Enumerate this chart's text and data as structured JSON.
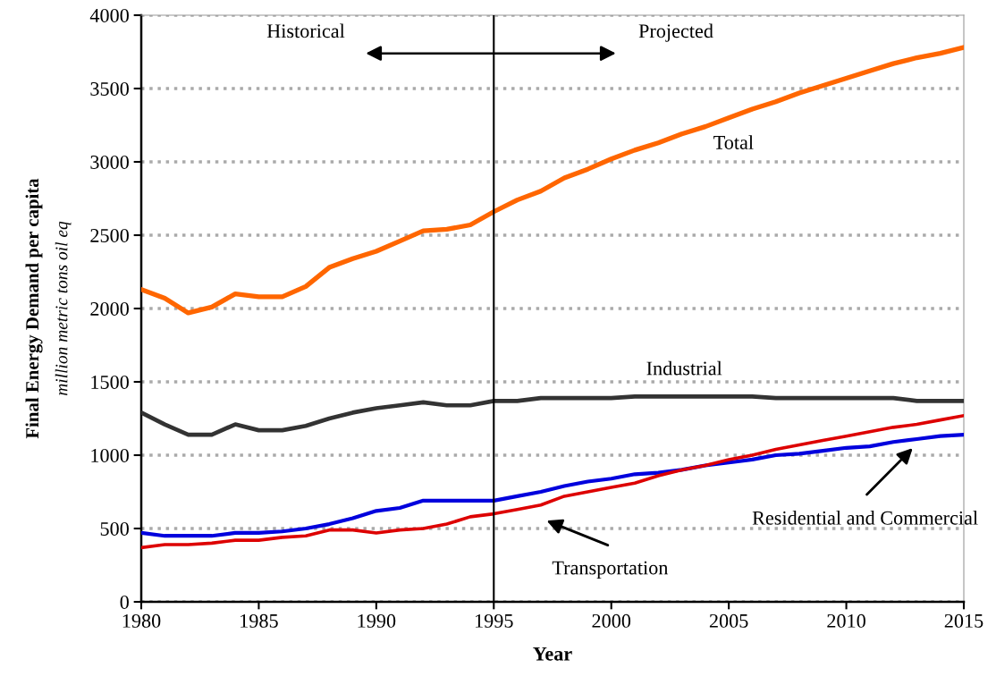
{
  "chart_data": {
    "type": "line",
    "xlabel": "Year",
    "ylabel": "Final Energy Demand per capita\nmillion metric tons oil eq",
    "x": [
      1980,
      1981,
      1982,
      1983,
      1984,
      1985,
      1986,
      1987,
      1988,
      1989,
      1990,
      1991,
      1992,
      1993,
      1994,
      1995,
      1996,
      1997,
      1998,
      1999,
      2000,
      2001,
      2002,
      2003,
      2004,
      2005,
      2006,
      2007,
      2008,
      2009,
      2010,
      2011,
      2012,
      2013,
      2014,
      2015
    ],
    "series": [
      {
        "name": "Total",
        "color": "#ff6600",
        "values": [
          2130,
          2070,
          1970,
          2010,
          2100,
          2080,
          2080,
          2150,
          2280,
          2340,
          2390,
          2460,
          2530,
          2540,
          2570,
          2660,
          2740,
          2800,
          2890,
          2950,
          3020,
          3080,
          3130,
          3190,
          3240,
          3300,
          3360,
          3410,
          3470,
          3520,
          3570,
          3620,
          3670,
          3710,
          3740,
          3780
        ]
      },
      {
        "name": "Industrial",
        "color": "#333333",
        "values": [
          1290,
          1210,
          1140,
          1140,
          1210,
          1170,
          1170,
          1200,
          1250,
          1290,
          1320,
          1340,
          1360,
          1340,
          1340,
          1370,
          1370,
          1390,
          1390,
          1390,
          1390,
          1400,
          1400,
          1400,
          1400,
          1400,
          1400,
          1390,
          1390,
          1390,
          1390,
          1390,
          1390,
          1370,
          1370,
          1370
        ]
      },
      {
        "name": "Residential and Commercial",
        "color": "#0000dd",
        "values": [
          470,
          450,
          450,
          450,
          470,
          470,
          480,
          500,
          530,
          570,
          620,
          640,
          690,
          690,
          690,
          690,
          720,
          750,
          790,
          820,
          840,
          870,
          880,
          900,
          930,
          950,
          970,
          1000,
          1010,
          1030,
          1050,
          1060,
          1090,
          1110,
          1130,
          1140
        ]
      },
      {
        "name": "Transportation",
        "color": "#dd0000",
        "values": [
          370,
          390,
          390,
          400,
          420,
          420,
          440,
          450,
          490,
          490,
          470,
          490,
          500,
          530,
          580,
          600,
          630,
          660,
          720,
          750,
          780,
          810,
          860,
          900,
          930,
          970,
          1000,
          1040,
          1070,
          1100,
          1130,
          1160,
          1190,
          1210,
          1240,
          1270
        ]
      }
    ],
    "xlim": [
      1980,
      2015
    ],
    "xticks": [
      1980,
      1985,
      1990,
      1995,
      2000,
      2005,
      2010,
      2015
    ],
    "ylim": [
      0,
      4000
    ],
    "yticks": [
      0,
      500,
      1000,
      1500,
      2000,
      2500,
      3000,
      3500,
      4000
    ],
    "grid": "y",
    "marker": "none",
    "line_style": "solid",
    "legend": false,
    "ref_lines": [
      {
        "axis": "x",
        "value": 1995,
        "color": "#000000",
        "line_style": "solid"
      }
    ],
    "annotations": [
      "Historical",
      "Projected"
    ]
  }
}
